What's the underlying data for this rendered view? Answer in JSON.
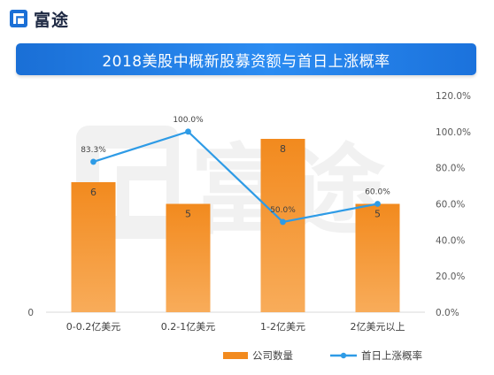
{
  "brand": {
    "name": "富途",
    "logo_icon": "futu-logo-icon",
    "color": "#1a6fd6"
  },
  "watermark": {
    "text": "富途",
    "icon": "futu-logo-icon"
  },
  "title": "2018美股中概新股募资额与首日上涨概率",
  "colors": {
    "bar": "#f28a1e",
    "bar_light": "#f7a44a",
    "line": "#2e9be6",
    "title_bar": "#1f7ae8"
  },
  "chart_data": {
    "type": "bar",
    "title": "2018美股中概新股募资额与首日上涨概率",
    "categories": [
      "0-0.2亿美元",
      "0.2-1亿美元",
      "1-2亿美元",
      "2亿美元以上"
    ],
    "series": [
      {
        "name": "公司数量",
        "type": "bar",
        "axis": "left",
        "values": [
          6,
          5,
          8,
          5
        ],
        "labels": [
          "6",
          "5",
          "8",
          "5"
        ]
      },
      {
        "name": "首日上涨概率",
        "type": "line",
        "axis": "right",
        "values": [
          83.3,
          100.0,
          50.0,
          60.0
        ],
        "labels": [
          "83.3%",
          "100.0%",
          "50.0%",
          "60.0%"
        ]
      }
    ],
    "left_axis": {
      "ylim": [
        0,
        10
      ],
      "tick_labels": [
        "0"
      ]
    },
    "right_axis": {
      "ylim": [
        0,
        120
      ],
      "tick_values": [
        0,
        20,
        40,
        60,
        80,
        100,
        120
      ],
      "tick_labels": [
        "0.0%",
        "20.0%",
        "40.0%",
        "60.0%",
        "80.0%",
        "100.0%",
        "120.0%"
      ]
    },
    "legend": {
      "position": "bottom",
      "items": [
        "公司数量",
        "首日上涨概率"
      ]
    },
    "grid": false
  }
}
